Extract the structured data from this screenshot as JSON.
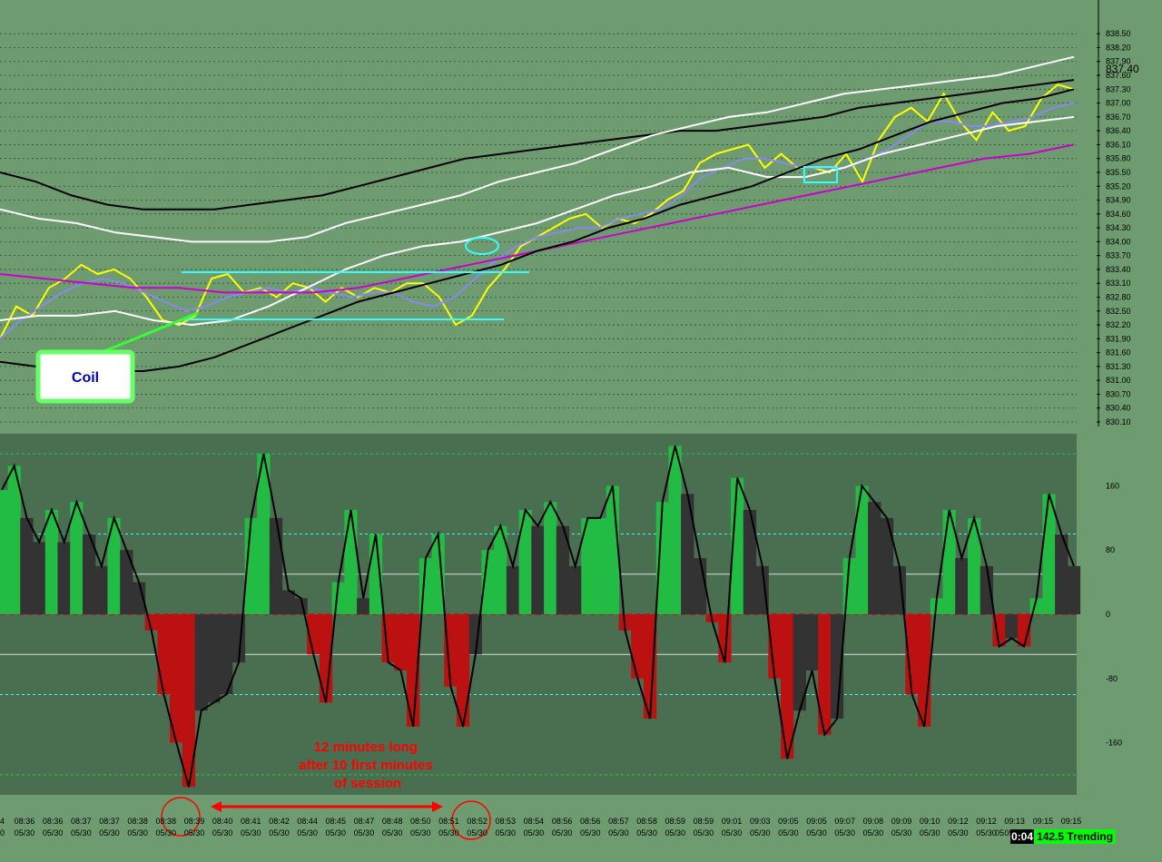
{
  "chart_data": [
    {
      "type": "line",
      "title": "",
      "ylabel": "",
      "xlabel": "",
      "ylim": [
        830.1,
        838.7
      ],
      "y_ticks": [
        "838.50",
        "838.20",
        "837.90",
        "837.60",
        "837.30",
        "837.00",
        "836.70",
        "836.40",
        "836.10",
        "835.80",
        "835.50",
        "835.20",
        "834.90",
        "834.60",
        "834.30",
        "834.00",
        "833.70",
        "833.40",
        "833.10",
        "832.80",
        "832.50",
        "832.20",
        "831.90",
        "831.60",
        "831.30",
        "831.00",
        "830.70",
        "830.40",
        "830.10"
      ],
      "last_price_label": "837.40",
      "grid": "dotted horizontal",
      "series": [
        {
          "color": "#ffff00",
          "values": [
            831.9,
            832.6,
            832.4,
            833.0,
            833.2,
            833.5,
            833.3,
            833.4,
            833.2,
            832.8,
            832.3,
            832.2,
            832.4,
            833.2,
            833.3,
            832.9,
            833.0,
            832.8,
            833.1,
            833.0,
            832.7,
            833.0,
            832.8,
            833.0,
            832.9,
            833.1,
            833.1,
            832.8,
            832.2,
            832.4,
            833.0,
            833.4,
            833.9,
            834.1,
            834.3,
            834.5,
            834.6,
            834.3,
            834.5,
            834.4,
            834.6,
            834.9,
            835.1,
            835.7,
            835.9,
            836.0,
            836.1,
            835.6,
            835.9,
            835.6,
            835.6,
            835.5,
            835.9,
            835.3,
            836.2,
            836.7,
            836.9,
            836.6,
            837.2,
            836.6,
            836.2,
            836.8,
            836.4,
            836.5,
            837.1,
            837.4,
            837.3
          ]
        },
        {
          "color": "#8888ee",
          "values": [
            831.9,
            832.3,
            832.6,
            832.9,
            833.1,
            833.2,
            833.1,
            832.9,
            832.7,
            832.5,
            832.6,
            832.8,
            832.9,
            833.0,
            832.9,
            833.0,
            832.9,
            832.8,
            832.9,
            832.9,
            832.7,
            832.6,
            832.8,
            833.2,
            833.6,
            833.9,
            834.1,
            834.2,
            834.3,
            834.3,
            834.5,
            834.6,
            834.7,
            835.0,
            835.4,
            835.6,
            835.8,
            835.8,
            835.7,
            835.6,
            835.6,
            835.6,
            835.8,
            836.0,
            836.3,
            836.6,
            836.6,
            836.5,
            836.5,
            836.6,
            836.7,
            836.9,
            837.0
          ]
        },
        {
          "color": "#ffffff",
          "values": [
            832.3,
            832.4,
            832.4,
            832.5,
            832.3,
            832.2,
            832.3,
            832.6,
            833.0,
            833.4,
            833.7,
            833.9,
            834.0,
            834.2,
            834.4,
            834.7,
            835.0,
            835.2,
            835.5,
            835.6,
            835.4,
            835.4,
            835.6,
            835.9,
            836.1,
            836.3,
            836.5,
            836.6,
            836.7
          ]
        },
        {
          "color": "#000000",
          "values": [
            835.5,
            835.3,
            835.0,
            834.8,
            834.7,
            834.7,
            834.7,
            834.8,
            834.9,
            835.0,
            835.2,
            835.4,
            835.6,
            835.8,
            835.9,
            836.0,
            836.1,
            836.2,
            836.3,
            836.4,
            836.4,
            836.5,
            836.6,
            836.7,
            836.9,
            837.0,
            837.1,
            837.2,
            837.3,
            837.4,
            837.5
          ]
        },
        {
          "color": "#cc00cc",
          "values": [
            833.3,
            833.2,
            833.1,
            833.0,
            833.0,
            832.9,
            832.9,
            832.9,
            833.0,
            833.2,
            833.4,
            833.6,
            833.8,
            834.0,
            834.2,
            834.4,
            834.6,
            834.8,
            835.0,
            835.2,
            835.4,
            835.6,
            835.8,
            835.9,
            836.1
          ]
        },
        {
          "color": "#ffffff",
          "values": [
            834.7,
            834.5,
            834.4,
            834.2,
            834.1,
            834.0,
            834.0,
            834.0,
            834.1,
            834.4,
            834.6,
            834.8,
            835.0,
            835.3,
            835.5,
            835.7,
            836.0,
            836.3,
            836.5,
            836.7,
            836.8,
            837.0,
            837.2,
            837.3,
            837.4,
            837.5,
            837.6,
            837.8,
            838.0
          ]
        },
        {
          "color": "#000000",
          "values": [
            831.4,
            831.3,
            831.2,
            831.2,
            831.2,
            831.3,
            831.5,
            831.8,
            832.1,
            832.4,
            832.7,
            832.9,
            833.1,
            833.3,
            833.5,
            833.8,
            834.0,
            834.3,
            834.5,
            834.8,
            835.0,
            835.2,
            835.5,
            835.8,
            836.0,
            836.3,
            836.6,
            836.8,
            837.0,
            837.1,
            837.3
          ]
        }
      ],
      "annotations": [
        {
          "label": "Coil",
          "color": "#0000cc",
          "box_color": "#66ff66"
        }
      ]
    },
    {
      "type": "bar",
      "title": "",
      "ylim": [
        -225,
        225
      ],
      "y_ticks": [
        "160",
        "80",
        "0",
        "-80",
        "-160"
      ],
      "reference_lines": [
        200,
        100,
        50,
        -50,
        -100,
        -200
      ],
      "x_ticks": [
        "08:36",
        "08:36",
        "08:37",
        "08:37",
        "08:38",
        "08:38",
        "08:39",
        "08:40",
        "08:41",
        "08:42",
        "08:44",
        "08:45",
        "08:47",
        "08:48",
        "08:50",
        "08:51",
        "08:52",
        "08:53",
        "08:54",
        "08:56",
        "08:56",
        "08:57",
        "08:58",
        "08:59",
        "08:59",
        "09:01",
        "09:03",
        "09:05",
        "09:05",
        "09:07",
        "09:08",
        "09:09",
        "09:10",
        "09:12",
        "09:12",
        "09:13",
        "09:15",
        "09:15"
      ],
      "x_tick_date": "05/30",
      "x_edge_labels": [
        "4",
        "0",
        "05"
      ],
      "values": [
        155,
        185,
        120,
        90,
        130,
        90,
        140,
        100,
        60,
        120,
        80,
        40,
        -20,
        -100,
        -160,
        -215,
        -120,
        -110,
        -100,
        -60,
        120,
        200,
        120,
        30,
        20,
        -50,
        -110,
        40,
        130,
        20,
        100,
        -60,
        -70,
        -140,
        70,
        100,
        -90,
        -140,
        -50,
        80,
        110,
        60,
        130,
        110,
        140,
        110,
        60,
        120,
        120,
        160,
        -20,
        -80,
        -130,
        140,
        210,
        150,
        70,
        -10,
        -60,
        170,
        130,
        60,
        -80,
        -180,
        -120,
        -70,
        -150,
        -130,
        70,
        160,
        140,
        120,
        60,
        -100,
        -140,
        20,
        130,
        70,
        120,
        60,
        -40,
        -30,
        -40,
        20,
        150,
        100,
        60
      ],
      "annotations": [
        {
          "label": "12 minutes long\nafter 10 first minutes\nof session",
          "color": "#ff0000"
        }
      ],
      "status_time": "0:04",
      "status": "142.5 Trending"
    }
  ]
}
